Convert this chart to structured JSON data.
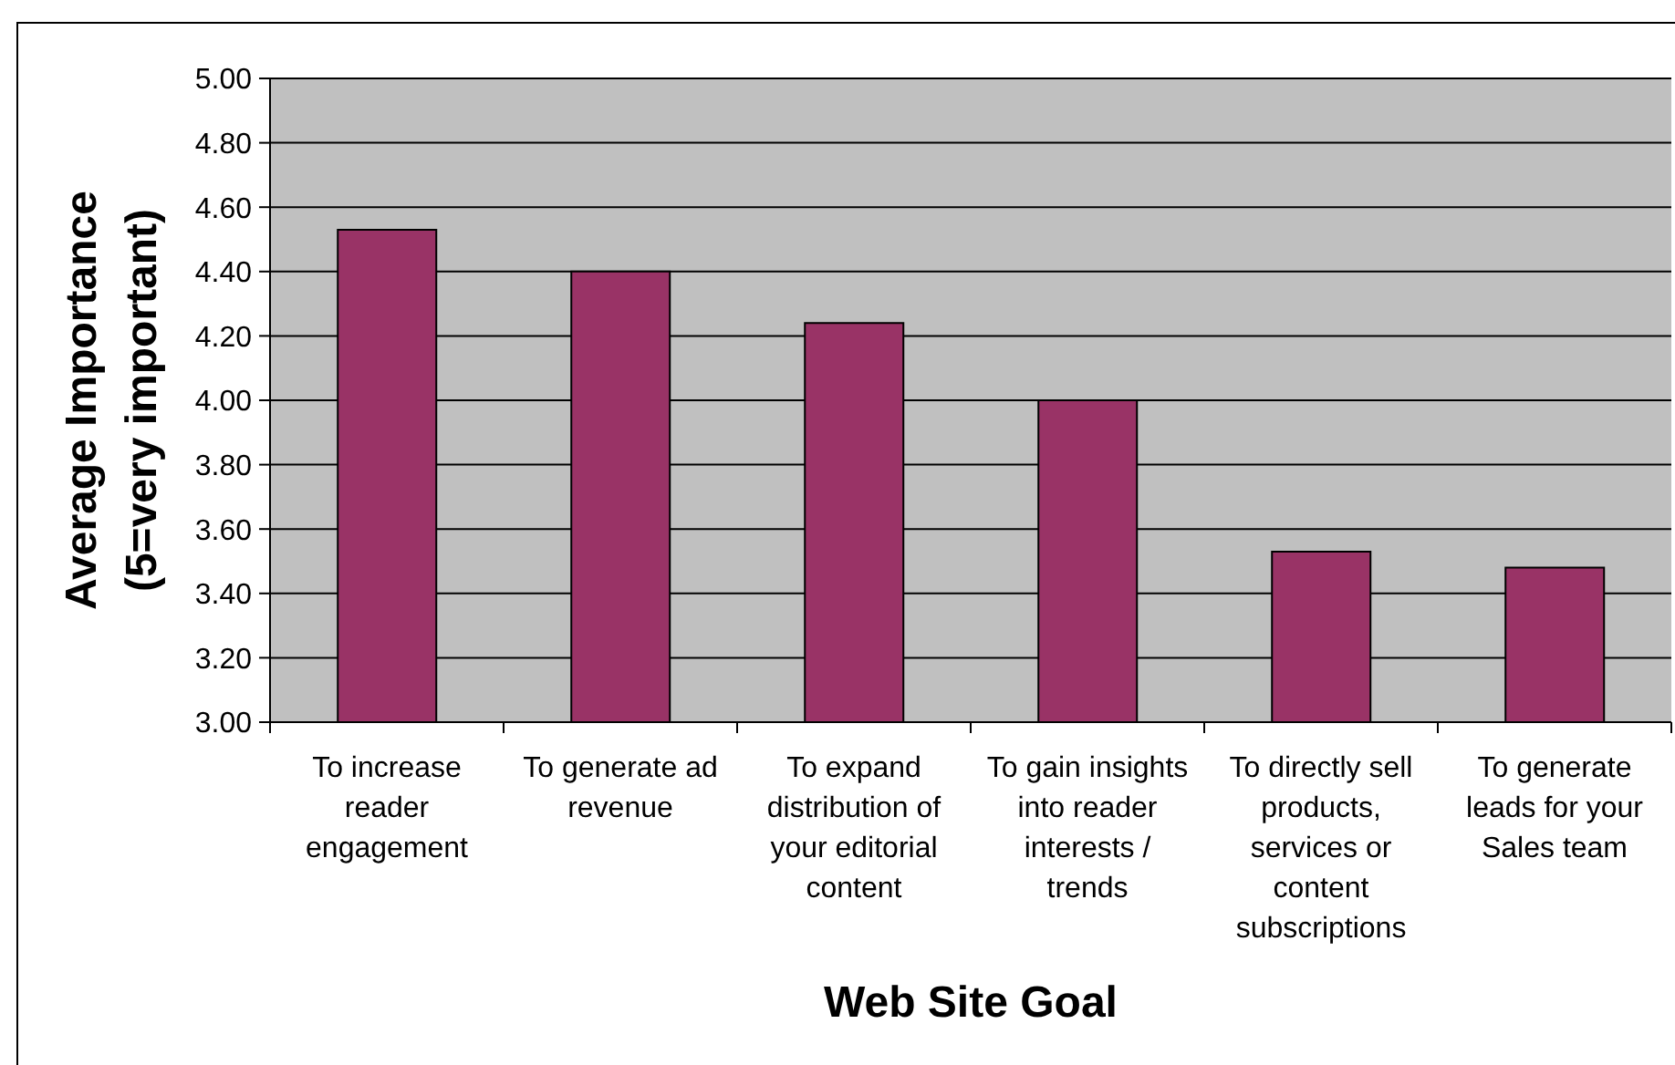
{
  "chart_data": {
    "type": "bar",
    "categories": [
      "To increase reader engagement",
      "To generate ad revenue",
      "To expand distribution of your editorial content",
      "To gain insights into reader interests / trends",
      "To directly sell products, services or content subscriptions",
      "To generate leads for your Sales team"
    ],
    "values": [
      4.53,
      4.4,
      4.24,
      4.0,
      3.53,
      3.48
    ],
    "color": "#993366",
    "xlabel": "Web Site Goal",
    "ylabel": "Average Importance (5=very important)",
    "ylim": [
      3,
      5
    ],
    "yticks": [
      {
        "value": 3,
        "label": "3.00"
      },
      {
        "value": 3.2,
        "label": "3.20"
      },
      {
        "value": 3.4,
        "label": "3.40"
      },
      {
        "value": 3.6,
        "label": "3.60"
      },
      {
        "value": 3.8,
        "label": "3.80"
      },
      {
        "value": 4,
        "label": "4.00"
      },
      {
        "value": 4.2,
        "label": "4.20"
      },
      {
        "value": 4.4,
        "label": "4.40"
      },
      {
        "value": 4.6,
        "label": "4.60"
      },
      {
        "value": 4.8,
        "label": "4.80"
      },
      {
        "value": 5,
        "label": "5.00"
      }
    ],
    "grid": "y"
  }
}
